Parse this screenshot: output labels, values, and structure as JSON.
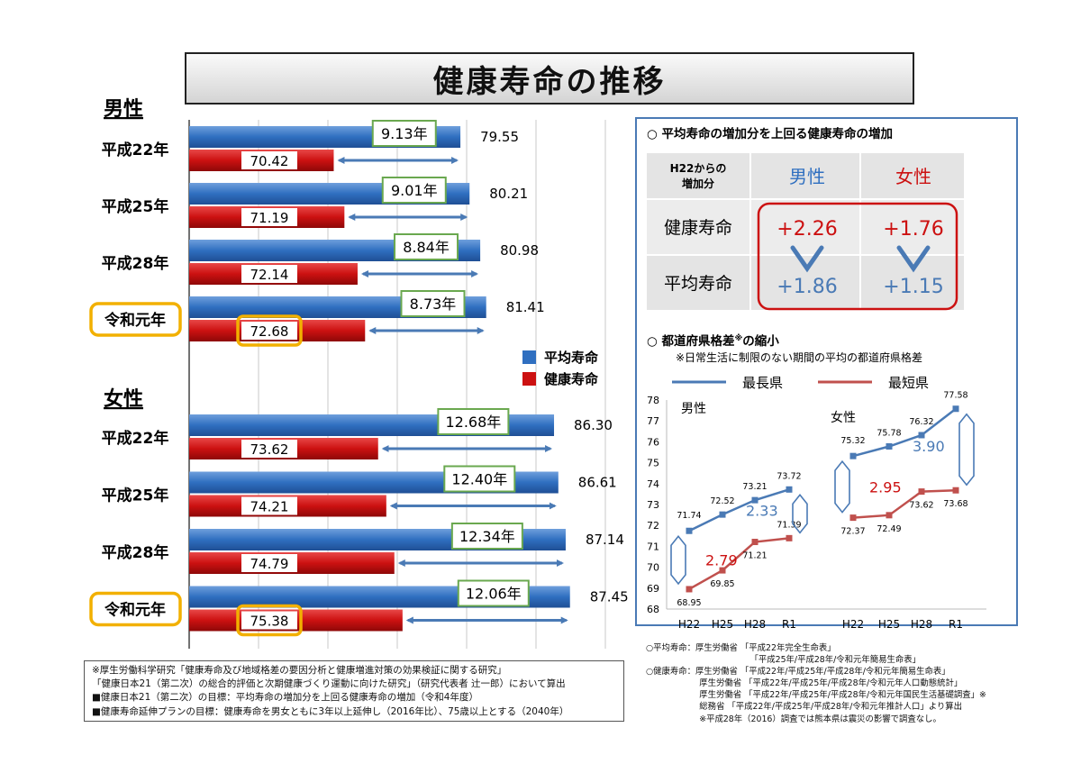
{
  "title": "健康寿命の推移",
  "legend": {
    "avg": "平均寿命",
    "healthy": "健康寿命",
    "avg_color": "#2f6fc0",
    "healthy_color": "#cc1111"
  },
  "bar_chart": {
    "male": {
      "label": "男性",
      "rows": [
        {
          "year": "平成22年",
          "avg": "79.55",
          "healthy": "70.42",
          "gap": "9.13年",
          "highlight": false
        },
        {
          "year": "平成25年",
          "avg": "80.21",
          "healthy": "71.19",
          "gap": "9.01年",
          "highlight": false
        },
        {
          "year": "平成28年",
          "avg": "80.98",
          "healthy": "72.14",
          "gap": "8.84年",
          "highlight": false
        },
        {
          "year": "令和元年",
          "avg": "81.41",
          "healthy": "72.68",
          "gap": "8.73年",
          "highlight": true
        }
      ]
    },
    "female": {
      "label": "女性",
      "rows": [
        {
          "year": "平成22年",
          "avg": "86.30",
          "healthy": "73.62",
          "gap": "12.68年",
          "highlight": false
        },
        {
          "year": "平成25年",
          "avg": "86.61",
          "healthy": "74.21",
          "gap": "12.40年",
          "highlight": false
        },
        {
          "year": "平成28年",
          "avg": "87.14",
          "healthy": "74.79",
          "gap": "12.34年",
          "highlight": false
        },
        {
          "year": "令和元年",
          "avg": "87.45",
          "healthy": "75.38",
          "gap": "12.06年",
          "highlight": true
        }
      ]
    }
  },
  "increase_table": {
    "heading": "○ 平均寿命の増加分を上回る健康寿命の増加",
    "corner_line1": "H22からの",
    "corner_line2": "増加分",
    "col_male": "男性",
    "col_female": "女性",
    "row_healthy": "健康寿命",
    "row_avg": "平均寿命",
    "male_healthy": "+2.26",
    "female_healthy": "+1.76",
    "male_avg": "+1.86",
    "female_avg": "+1.15"
  },
  "gap_section": {
    "heading": "○ 都道府県格差",
    "heading_sup": "※",
    "heading_tail": "の縮小",
    "note": "※日常生活に制限のない期間の平均の都道府県格差",
    "legend_max": "最長県",
    "legend_min": "最短県",
    "max_color": "#4a7ab5",
    "min_color": "#c0504d"
  },
  "chart_data": [
    {
      "type": "bar",
      "title": "男性",
      "categories": [
        "平成22年",
        "平成25年",
        "平成28年",
        "令和元年"
      ],
      "series": [
        {
          "name": "平均寿命",
          "values": [
            79.55,
            80.21,
            80.98,
            81.41
          ]
        },
        {
          "name": "健康寿命",
          "values": [
            70.42,
            71.19,
            72.14,
            72.68
          ]
        }
      ],
      "annotations": [
        "9.13年",
        "9.01年",
        "8.84年",
        "8.73年"
      ]
    },
    {
      "type": "bar",
      "title": "女性",
      "categories": [
        "平成22年",
        "平成25年",
        "平成28年",
        "令和元年"
      ],
      "series": [
        {
          "name": "平均寿命",
          "values": [
            86.3,
            86.61,
            87.14,
            87.45
          ]
        },
        {
          "name": "健康寿命",
          "values": [
            73.62,
            74.21,
            74.79,
            75.38
          ]
        }
      ],
      "annotations": [
        "12.68年",
        "12.40年",
        "12.34年",
        "12.06年"
      ]
    },
    {
      "type": "line",
      "ylim": [
        68,
        78
      ],
      "yticks": [
        "68",
        "69",
        "70",
        "71",
        "72",
        "73",
        "74",
        "75",
        "76",
        "77",
        "78"
      ],
      "panels": [
        {
          "label": "男性",
          "x": [
            "H22",
            "H25",
            "H28",
            "R1"
          ],
          "series": [
            {
              "name": "最長県",
              "values": [
                71.74,
                72.52,
                73.21,
                73.72
              ]
            },
            {
              "name": "最短県",
              "values": [
                68.95,
                69.85,
                71.21,
                71.39
              ]
            }
          ],
          "gaps": [
            {
              "label": "2.79",
              "color": "#cc1111"
            },
            {
              "label": "2.33",
              "color": "#4a7ab5"
            }
          ]
        },
        {
          "label": "女性",
          "x": [
            "H22",
            "H25",
            "H28",
            "R1"
          ],
          "series": [
            {
              "name": "最長県",
              "values": [
                75.32,
                75.78,
                76.32,
                77.58
              ]
            },
            {
              "name": "最短県",
              "values": [
                72.37,
                72.49,
                73.62,
                73.68
              ]
            }
          ],
          "gaps": [
            {
              "label": "2.95",
              "color": "#cc1111"
            },
            {
              "label": "3.90",
              "color": "#4a7ab5"
            }
          ]
        }
      ]
    }
  ],
  "notes": [
    "※厚生労働科学研究「健康寿命及び地域格差の要因分析と健康増進対策の効果検証に関する研究」",
    "「健康日本21（第二次）の総合的評価と次期健康づくり運動に向けた研究」（研究代表者 辻一郎）において算出",
    "■健康日本21（第二次）の目標：平均寿命の増加分を上回る健康寿命の増加（令和4年度）",
    "■健康寿命延伸プランの目標：健康寿命を男女ともに3年以上延伸し（2016年比）、75歳以上とする（2040年）"
  ],
  "sources": [
    "○平均寿命：厚生労働省 「平成22年完全生命表」",
    "　　　　　　　　　　　　 「平成25年/平成28年/令和元年簡易生命表」",
    "○健康寿命：厚生労働省 「平成22年/平成25年/平成28年/令和元年簡易生命表」",
    "　　　　　　 厚生労働省 「平成22年/平成25年/平成28年/令和元年人口動態統計」",
    "　　　　　　 厚生労働省 「平成22年/平成25年/平成28年/令和元年国民生活基礎調査」※",
    "　　　　　　 総務省 「平成22年/平成25年/平成28年/令和元年推計人口」より算出",
    "　　　　　　 ※平成28年（2016）調査では熊本県は震災の影響で調査なし。"
  ]
}
